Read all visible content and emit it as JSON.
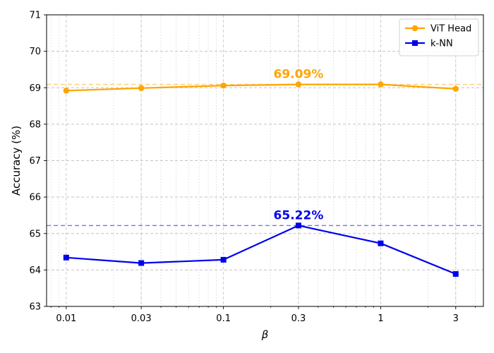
{
  "chart_data": {
    "type": "line",
    "xlabel": "β",
    "ylabel": "Accuracy (%)",
    "xscale": "log",
    "x": [
      0.01,
      0.03,
      0.1,
      0.3,
      1,
      3
    ],
    "x_tick_labels": [
      "0.01",
      "0.03",
      "0.1",
      "0.3",
      "1",
      "3"
    ],
    "xlim": [
      0.0075,
      4.5
    ],
    "ylim": [
      63,
      71
    ],
    "y_ticks": [
      63,
      64,
      65,
      66,
      67,
      68,
      69,
      70,
      71
    ],
    "grid": true,
    "legend_position": "top-right",
    "series": [
      {
        "name": "ViT Head",
        "color": "#FFA500",
        "marker": "circle",
        "values": [
          68.92,
          68.99,
          69.06,
          69.09,
          69.09,
          68.97
        ],
        "reference_line": 69.09,
        "peak_label": "69.09%"
      },
      {
        "name": "k-NN",
        "color": "#0000EE",
        "marker": "square",
        "values": [
          64.34,
          64.19,
          64.28,
          65.22,
          64.73,
          63.89
        ],
        "reference_line": 65.22,
        "peak_label": "65.22%"
      }
    ]
  }
}
